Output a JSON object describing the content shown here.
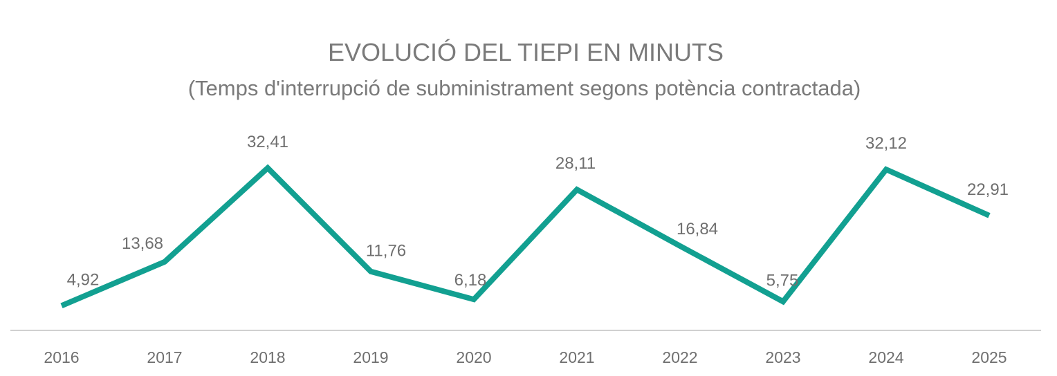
{
  "chart_data": {
    "type": "line",
    "title": "EVOLUCIÓ DEL TIEPI EN MINUTS",
    "subtitle": "(Temps d'interrupció de subministrament segons potència contractada)",
    "categories": [
      "2016",
      "2017",
      "2018",
      "2019",
      "2020",
      "2021",
      "2022",
      "2023",
      "2024",
      "2025"
    ],
    "series": [
      {
        "name": "TIEPI",
        "values": [
          4.92,
          13.68,
          32.41,
          11.76,
          6.18,
          28.11,
          16.84,
          5.75,
          32.12,
          22.91
        ],
        "labels": [
          "4,92",
          "13,68",
          "32,41",
          "11,76",
          "6,18",
          "28,11",
          "16,84",
          "5,75",
          "32,12",
          "22,91"
        ]
      }
    ],
    "xlabel": "",
    "ylabel": "",
    "ylim": [
      0,
      40
    ],
    "grid": false,
    "legend": "none",
    "colors": {
      "line": "#12a091",
      "axis": "#d0d0d0",
      "text": "#767676"
    }
  }
}
